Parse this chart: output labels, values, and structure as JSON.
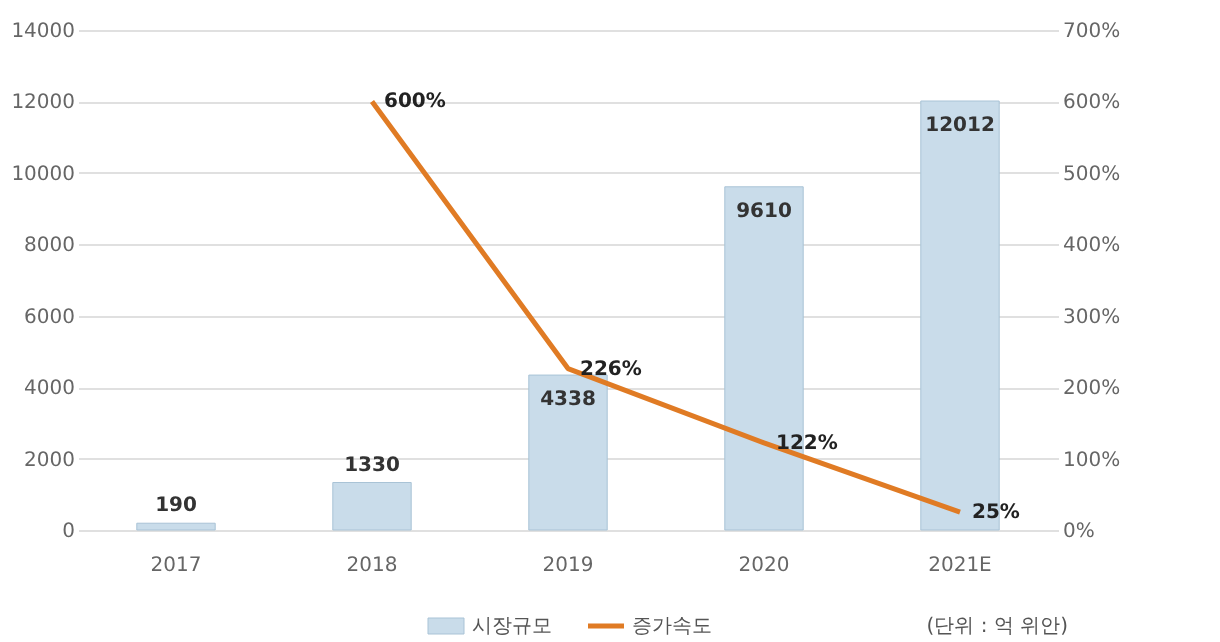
{
  "chart_data": {
    "type": "bar",
    "categories": [
      "2017",
      "2018",
      "2019",
      "2020",
      "2021E"
    ],
    "series": [
      {
        "name": "시장규모",
        "color": "#c9dcea",
        "values": [
          190,
          1330,
          4338,
          9610,
          12012
        ],
        "value_labels": [
          "190",
          "1330",
          "4338",
          "9610",
          "12012"
        ]
      },
      {
        "name": "증가속도",
        "type": "line",
        "axis": "y2",
        "color": "#e07b24",
        "values": [
          null,
          600,
          226,
          122,
          25
        ],
        "value_labels": [
          null,
          "600%",
          "226%",
          "122%",
          "25%"
        ]
      }
    ],
    "ylim": [
      0,
      14000
    ],
    "yticks": [
      0,
      2000,
      4000,
      6000,
      8000,
      10000,
      12000,
      14000
    ],
    "y2lim": [
      0,
      700
    ],
    "y2ticks": [
      {
        "value": 0,
        "label": "0%"
      },
      {
        "value": 100,
        "label": "100%"
      },
      {
        "value": 200,
        "label": "200%"
      },
      {
        "value": 300,
        "label": "300%"
      },
      {
        "value": 400,
        "label": "400%"
      },
      {
        "value": 500,
        "label": "500%"
      },
      {
        "value": 600,
        "label": "600%"
      },
      {
        "value": 700,
        "label": "700%"
      }
    ],
    "grid": "y",
    "legend": "bottom",
    "line_style": "solid",
    "marker": "none",
    "annotations": [
      "(단위 : 억 위안)"
    ]
  }
}
